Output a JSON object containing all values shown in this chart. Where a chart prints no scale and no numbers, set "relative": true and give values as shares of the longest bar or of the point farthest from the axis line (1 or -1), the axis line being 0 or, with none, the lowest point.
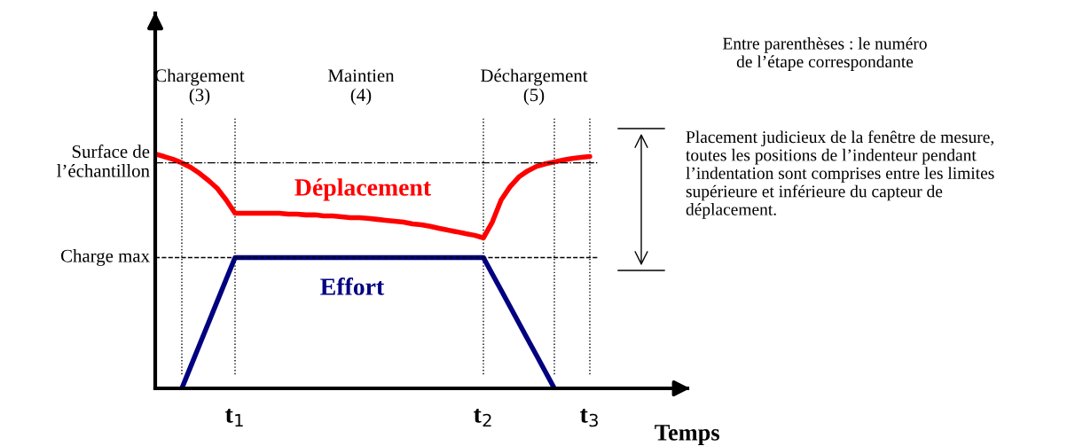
{
  "chart_data": {
    "type": "line",
    "relative": true,
    "xlabel": "Temps",
    "categories": [
      null,
      null,
      null,
      null,
      null,
      null,
      null,
      null,
      null,
      "t$_{1}$",
      null,
      null,
      null,
      null,
      null,
      null,
      null,
      null,
      null,
      null,
      null,
      null,
      null,
      null,
      null,
      null,
      null,
      null,
      null,
      null,
      null,
      null,
      null,
      null,
      null,
      null,
      null,
      "t$_{2}$",
      null,
      null,
      null,
      null,
      null,
      null,
      null,
      null,
      null,
      null,
      null,
      "t$_{3}$",
      null,
      null,
      null,
      null,
      null,
      null,
      null,
      null,
      null,
      null,
      null
    ],
    "series": [
      {
        "name": "Déplacement",
        "color": "#ff0000",
        "values": [
          1.0,
          0.989,
          0.977,
          0.962,
          0.943,
          0.917,
          0.887,
          0.853,
          0.804,
          0.747,
          0.747,
          0.747,
          0.747,
          0.747,
          0.747,
          0.743,
          0.743,
          0.74,
          0.74,
          0.736,
          0.736,
          0.732,
          0.728,
          0.728,
          0.725,
          0.721,
          0.717,
          0.713,
          0.709,
          0.702,
          0.698,
          0.691,
          0.683,
          0.675,
          0.668,
          0.66,
          0.653,
          0.642,
          0.709,
          0.804,
          0.86,
          0.902,
          0.928,
          0.947,
          0.958,
          0.966,
          0.974,
          0.981,
          0.985,
          0.989,
          null,
          null,
          null,
          null,
          null,
          null,
          null,
          null,
          null,
          null,
          null
        ]
      },
      {
        "name": "Effort",
        "color": "#000080",
        "values": [
          null,
          null,
          null,
          0,
          0.093,
          0.186,
          0.279,
          0.372,
          0.465,
          0.558,
          0.558,
          0.558,
          0.558,
          0.558,
          0.558,
          0.558,
          0.558,
          0.558,
          0.558,
          0.558,
          0.558,
          0.558,
          0.558,
          0.558,
          0.558,
          0.558,
          0.558,
          0.558,
          0.558,
          0.558,
          0.558,
          0.558,
          0.558,
          0.558,
          0.558,
          0.558,
          0.558,
          0.558,
          0.488,
          0.419,
          0.349,
          0.279,
          0.209,
          0.14,
          0.07,
          0,
          null,
          null,
          null,
          null,
          null,
          null,
          null,
          null,
          null,
          null,
          null,
          null,
          null,
          null,
          null
        ]
      }
    ],
    "ref_lines": [
      {
        "axis": "y",
        "value": 0.962,
        "label": "Surface de\nl’échantillon",
        "line_style": "dashdot",
        "color": "#000000"
      },
      {
        "axis": "y",
        "value": 0.558,
        "label": "Charge max",
        "line_style": "dashed",
        "color": "#000000"
      }
    ],
    "annotations": [
      "Chargement\n(3)",
      "Maintien\n(4)",
      "Déchargement\n(5)",
      "Entre parenthèses : le numéro\nde l’étape correspondante",
      "Placement judicieux de la fenêtre de mesure,\ntoutes les positions de l’indenteur pendant\nl’indentation sont comprises entre les limites\nsupérieure et inférieure du capteur de\ndéplacement."
    ],
    "line_style": "solid",
    "marker": "none",
    "grid": "x",
    "legend": false
  }
}
